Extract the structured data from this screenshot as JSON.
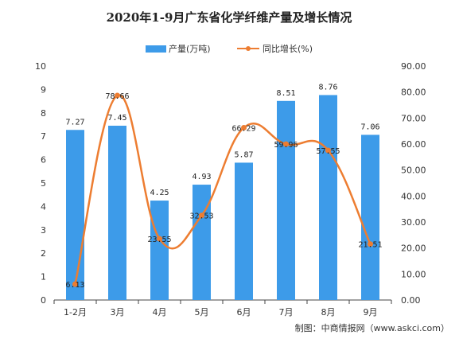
{
  "chart_data": {
    "type": "bar",
    "title": "2020年1-9月广东省化学纤维产量及增长情况",
    "categories": [
      "1-2月",
      "3月",
      "4月",
      "5月",
      "6月",
      "7月",
      "8月",
      "9月"
    ],
    "series": [
      {
        "name": "产量(万吨)",
        "type": "bar",
        "axis": "left",
        "values": [
          7.27,
          7.45,
          4.25,
          4.93,
          5.87,
          8.51,
          8.76,
          7.06
        ],
        "labels": [
          "7.27",
          "7.45",
          "4.25",
          "4.93",
          "5.87",
          "8.51",
          "8.76",
          "7.06"
        ]
      },
      {
        "name": "同比增长(%)",
        "type": "line",
        "axis": "right",
        "values": [
          6.13,
          78.66,
          23.55,
          32.53,
          66.29,
          59.96,
          57.55,
          21.51
        ],
        "labels": [
          "6.13",
          "78.66",
          "23.55",
          "32.53",
          "66.29",
          "59.96",
          "57.55",
          "21.51"
        ]
      }
    ],
    "ylim_left": [
      0,
      10
    ],
    "yticks_left": [
      "0",
      "1",
      "2",
      "3",
      "4",
      "5",
      "6",
      "7",
      "8",
      "9",
      "10"
    ],
    "ylim_right": [
      0,
      90
    ],
    "yticks_right": [
      "0.00",
      "10.00",
      "20.00",
      "30.00",
      "40.00",
      "50.00",
      "60.00",
      "70.00",
      "80.00",
      "90.00"
    ],
    "legend_position": "top-center",
    "grid": false,
    "colors": {
      "bar": "#3d9be9",
      "line": "#ed7d31"
    }
  },
  "source": "制图：中商情报网（www.askci.com）"
}
